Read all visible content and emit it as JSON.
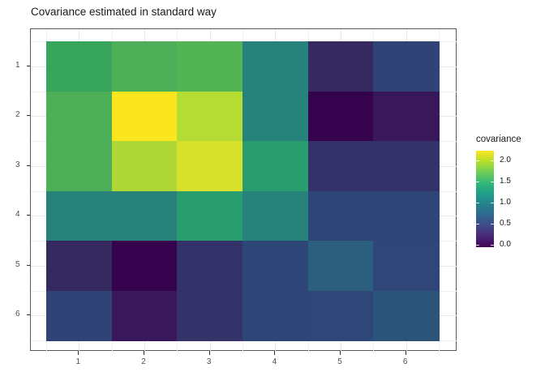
{
  "title": "Covariance estimated in standard way",
  "chart_data": {
    "type": "heatmap",
    "title": "Covariance estimated in standard way",
    "xlabel": "",
    "ylabel": "",
    "x_categories": [
      "1",
      "2",
      "3",
      "4",
      "5",
      "6"
    ],
    "y_categories": [
      "1",
      "2",
      "3",
      "4",
      "5",
      "6"
    ],
    "y_order": "top_to_bottom",
    "grid": "on",
    "values": [
      [
        1.5,
        1.6,
        1.65,
        0.95,
        0.2,
        0.45
      ],
      [
        1.6,
        2.15,
        1.8,
        0.95,
        -0.05,
        0.05
      ],
      [
        1.6,
        1.75,
        1.9,
        1.3,
        0.25,
        0.25
      ],
      [
        0.95,
        0.95,
        1.3,
        0.95,
        0.45,
        0.45
      ],
      [
        0.2,
        -0.05,
        0.25,
        0.45,
        0.65,
        0.45
      ],
      [
        0.45,
        0.05,
        0.25,
        0.45,
        0.45,
        0.6
      ]
    ],
    "cell_colors": [
      [
        "#38a55d",
        "#4db059",
        "#52b455",
        "#26827b",
        "#36295f",
        "#2f4376"
      ],
      [
        "#4db059",
        "#fbe51e",
        "#b4dc34",
        "#26827b",
        "#35034d",
        "#38175a"
      ],
      [
        "#4db059",
        "#afd736",
        "#d7e02b",
        "#2a9d6e",
        "#333269",
        "#333269"
      ],
      [
        "#26827b",
        "#26827b",
        "#2a9d6e",
        "#26827b",
        "#2e4577",
        "#2e4577"
      ],
      [
        "#36295f",
        "#35034d",
        "#333269",
        "#2e4577",
        "#2c5e7e",
        "#2e4678"
      ],
      [
        "#2f4376",
        "#38175a",
        "#333269",
        "#2e4577",
        "#2e4678",
        "#2c537a"
      ]
    ],
    "legend": {
      "title": "covariance",
      "position": "right",
      "ticks": [
        "2.0",
        "1.5",
        "1.0",
        "0.5",
        "0.0"
      ],
      "tick_values": [
        2.0,
        1.5,
        1.0,
        0.5,
        0.0
      ],
      "scale_min": -0.06,
      "scale_max": 2.24,
      "colormap": "viridis",
      "gradient_stops_bottom_to_top": [
        "#440154",
        "#482878",
        "#3e4a89",
        "#31688e",
        "#26828e",
        "#1f9e89",
        "#35b779",
        "#6ece58",
        "#b5de2b",
        "#fde725"
      ]
    },
    "style": {
      "panel_border_color": "#595959",
      "major_grid_color": "#e8e8e8",
      "minor_grid_color": "#f0f0f0",
      "axis_text_color": "#4d4d4d",
      "tick_color": "#333333"
    }
  }
}
